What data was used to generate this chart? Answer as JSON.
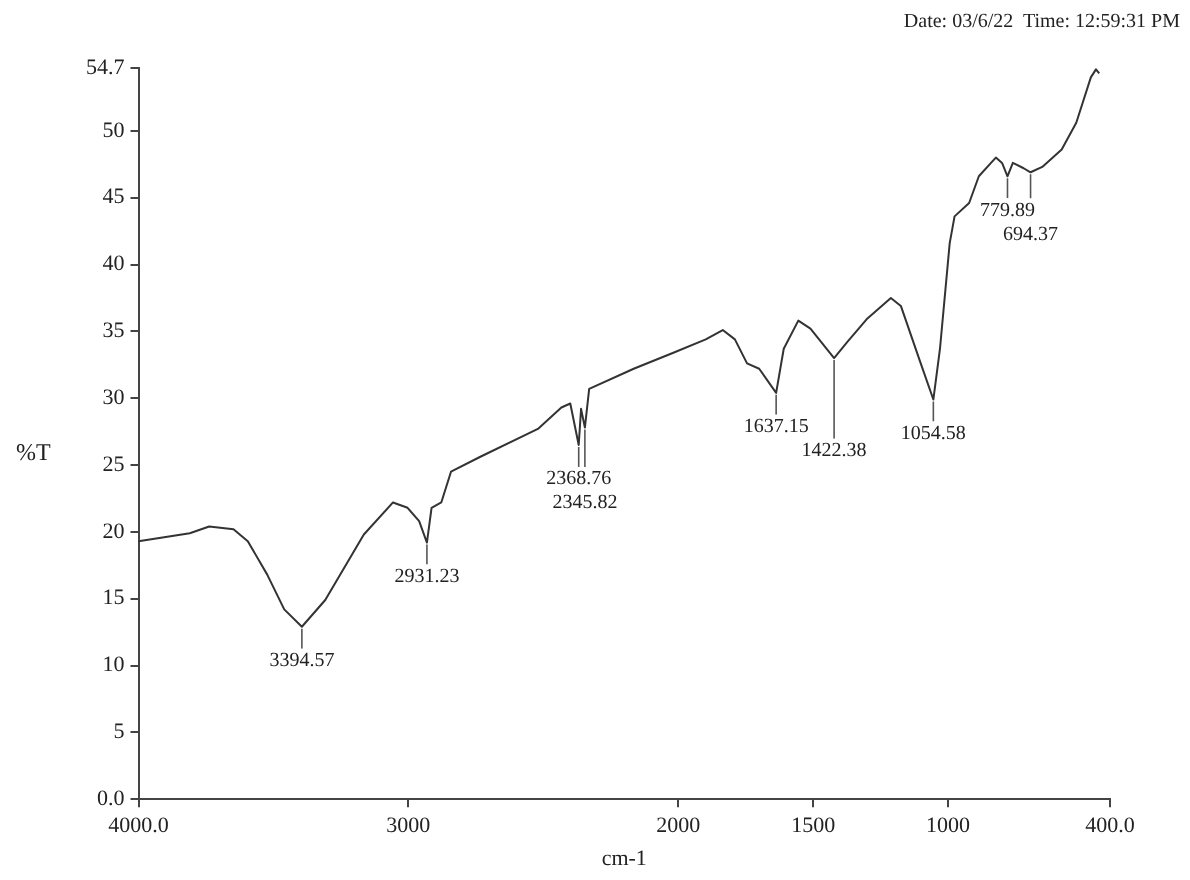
{
  "chart_data": {
    "type": "line",
    "xlabel": "cm-1",
    "ylabel": "%T",
    "color": "#333333",
    "grid": false,
    "legend": false,
    "marker": "none",
    "line_style": "solid",
    "x": [
      4000,
      3810,
      3738,
      3648,
      3595,
      3523,
      3460,
      3394.57,
      3308,
      3165,
      3057,
      3003,
      2960,
      2931.23,
      2914,
      2878,
      2842,
      2735,
      2520,
      2433,
      2400,
      2368.76,
      2360,
      2345.82,
      2330,
      2165,
      2018,
      1898,
      1835,
      1790,
      1745,
      1700,
      1637.15,
      1609,
      1555,
      1510,
      1422.38,
      1374,
      1302,
      1212,
      1175,
      1103,
      1054.58,
      1030,
      994,
      976,
      922,
      886,
      841,
      823,
      800,
      779.89,
      760,
      720,
      694.37,
      651,
      579,
      525,
      471,
      452,
      440
    ],
    "values": [
      19.3,
      19.9,
      20.4,
      20.2,
      19.3,
      16.8,
      14.2,
      12.9,
      14.9,
      19.8,
      22.2,
      21.8,
      20.8,
      19.2,
      21.8,
      22.2,
      24.5,
      25.6,
      27.7,
      29.3,
      29.6,
      26.5,
      29.2,
      27.8,
      30.7,
      32.2,
      33.4,
      34.4,
      35.1,
      34.4,
      32.6,
      32.2,
      30.4,
      33.7,
      35.8,
      35.2,
      33.0,
      34.2,
      35.9,
      37.5,
      36.9,
      32.7,
      29.9,
      33.7,
      41.6,
      43.6,
      44.6,
      46.6,
      47.6,
      48.0,
      47.6,
      46.6,
      47.6,
      47.2,
      46.9,
      47.3,
      48.6,
      50.6,
      54.0,
      54.6,
      54.3
    ],
    "xlim": [
      4000,
      400
    ],
    "xticks": [
      {
        "value": 4000,
        "label": "4000.0"
      },
      3000,
      2000,
      1500,
      1000,
      {
        "value": 400,
        "label": "400.0"
      }
    ],
    "ylim": [
      0,
      54.7
    ],
    "yticks": [
      {
        "value": 0,
        "label": "0.0"
      },
      5,
      10,
      15,
      20,
      25,
      30,
      35,
      40,
      45,
      50,
      54.7
    ],
    "annotations": [
      "Date: 03/6/22  Time: 12:59:31 PM",
      {
        "text": "3394.57",
        "x": 3394.57,
        "y": 12.9
      },
      {
        "text": "2931.23",
        "x": 2931.23,
        "y": 19.2
      },
      {
        "text": "2368.76",
        "x": 2368.76,
        "y": 26.5
      },
      {
        "text": "2345.82",
        "x": 2345.82,
        "y": 27.8
      },
      {
        "text": "1637.15",
        "x": 1637.15,
        "y": 30.4
      },
      {
        "text": "1422.38",
        "x": 1422.38,
        "y": 33.0
      },
      {
        "text": "1054.58",
        "x": 1054.58,
        "y": 29.9
      },
      {
        "text": "779.89",
        "x": 779.89,
        "y": 46.6
      },
      {
        "text": "694.37",
        "x": 694.37,
        "y": 46.9
      }
    ]
  }
}
